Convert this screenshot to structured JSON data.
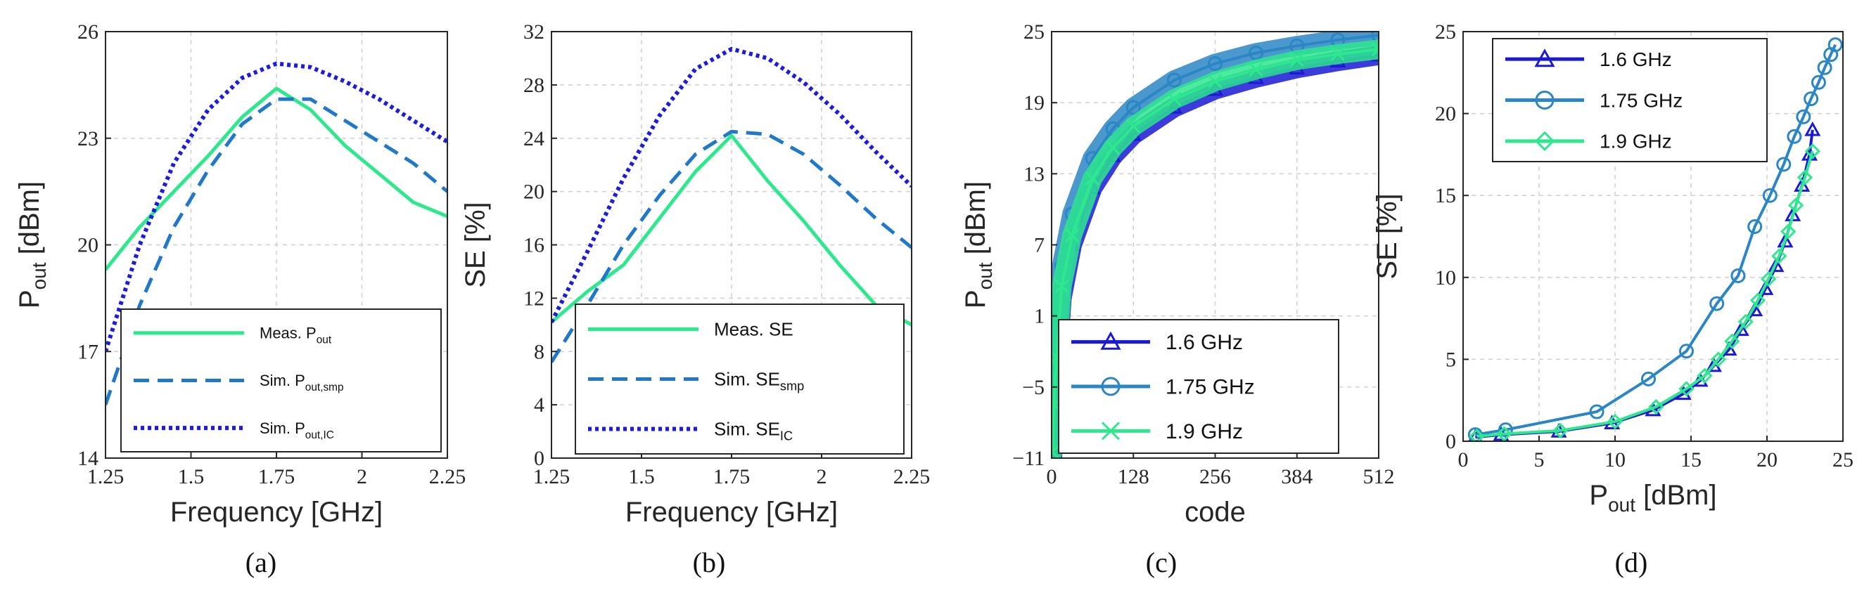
{
  "colors": {
    "green": "#2ee88e",
    "blue_dash": "#1f78c8",
    "blue_dot": "#1c1cdc",
    "blue_16": "#1a1ad6",
    "teal_175": "#2a86c4",
    "green_19": "#2ee88e"
  },
  "chart_data": [
    {
      "type": "line",
      "panel": "(a)",
      "xlabel": "Frequency [GHz]",
      "ylabel_main": "P",
      "ylabel_sub": "out",
      "ylabel_tail": " [dBm]",
      "xlim": [
        1.25,
        2.25
      ],
      "ylim": [
        14,
        26
      ],
      "xticks": [
        1.25,
        1.5,
        1.75,
        2,
        2.25
      ],
      "xtick_labels": [
        "1.25",
        "1.5",
        "1.75",
        "2",
        "2.25"
      ],
      "yticks": [
        14,
        17,
        20,
        23,
        26
      ],
      "ytick_labels": [
        "14",
        "17",
        "20",
        "23",
        "26"
      ],
      "grid": true,
      "legend_position": "bottom-right",
      "series": [
        {
          "name_main": "Meas. P",
          "name_sub": "out",
          "style": "solid",
          "color_key": "green",
          "x": [
            1.25,
            1.35,
            1.45,
            1.55,
            1.65,
            1.75,
            1.85,
            1.95,
            2.05,
            2.15,
            2.25
          ],
          "y": [
            19.3,
            20.5,
            21.5,
            22.5,
            23.6,
            24.4,
            23.8,
            22.8,
            22.0,
            21.2,
            20.8
          ]
        },
        {
          "name_main": "Sim. P",
          "name_sub": "out,smp",
          "style": "dashed",
          "color_key": "blue_dash",
          "x": [
            1.25,
            1.35,
            1.45,
            1.55,
            1.65,
            1.75,
            1.85,
            1.95,
            2.05,
            2.15,
            2.25
          ],
          "y": [
            15.5,
            18.3,
            20.5,
            22.1,
            23.4,
            24.1,
            24.1,
            23.5,
            22.9,
            22.3,
            21.5
          ]
        },
        {
          "name_main": "Sim. P",
          "name_sub": "out,IC",
          "style": "dotted",
          "color_key": "blue_dot",
          "x": [
            1.25,
            1.35,
            1.45,
            1.55,
            1.65,
            1.75,
            1.85,
            1.95,
            2.05,
            2.15,
            2.25
          ],
          "y": [
            17.0,
            20.0,
            22.3,
            23.8,
            24.7,
            25.1,
            25.0,
            24.6,
            24.1,
            23.5,
            22.9
          ]
        }
      ]
    },
    {
      "type": "line",
      "panel": "(b)",
      "xlabel": "Frequency [GHz]",
      "ylabel_main": "SE [%]",
      "ylabel_sub": "",
      "ylabel_tail": "",
      "xlim": [
        1.25,
        2.25
      ],
      "ylim": [
        0,
        32
      ],
      "xticks": [
        1.25,
        1.5,
        1.75,
        2,
        2.25
      ],
      "xtick_labels": [
        "1.25",
        "1.5",
        "1.75",
        "2",
        "2.25"
      ],
      "yticks": [
        0,
        4,
        8,
        12,
        16,
        20,
        24,
        28,
        32
      ],
      "ytick_labels": [
        "0",
        "4",
        "8",
        "12",
        "16",
        "20",
        "24",
        "28",
        "32"
      ],
      "grid": true,
      "legend_position": "bottom-right",
      "series": [
        {
          "name_main": "Meas. SE",
          "name_sub": "",
          "style": "solid",
          "color_key": "green",
          "x": [
            1.25,
            1.35,
            1.45,
            1.55,
            1.65,
            1.75,
            1.85,
            1.95,
            2.05,
            2.15,
            2.25
          ],
          "y": [
            10.2,
            12.5,
            14.5,
            18.0,
            21.5,
            24.2,
            20.8,
            17.8,
            14.5,
            11.5,
            10.0
          ]
        },
        {
          "name_main": "Sim. SE",
          "name_sub": "smp",
          "style": "dashed",
          "color_key": "blue_dash",
          "x": [
            1.25,
            1.35,
            1.45,
            1.55,
            1.65,
            1.75,
            1.85,
            1.95,
            2.05,
            2.15,
            2.25
          ],
          "y": [
            7.2,
            11.5,
            16.0,
            19.7,
            22.8,
            24.5,
            24.3,
            22.8,
            20.5,
            18.0,
            15.8
          ]
        },
        {
          "name_main": "Sim. SE",
          "name_sub": "IC",
          "style": "dotted",
          "color_key": "blue_dot",
          "x": [
            1.25,
            1.35,
            1.45,
            1.55,
            1.65,
            1.75,
            1.85,
            1.95,
            2.05,
            2.15,
            2.25
          ],
          "y": [
            10.2,
            15.5,
            21.0,
            25.7,
            29.2,
            30.7,
            30.0,
            28.2,
            25.8,
            23.0,
            20.4
          ]
        }
      ]
    },
    {
      "type": "line",
      "panel": "(c)",
      "xlabel": "code",
      "ylabel_main": "P",
      "ylabel_sub": "out",
      "ylabel_tail": " [dBm]",
      "xlim": [
        0,
        512
      ],
      "ylim": [
        -11,
        25
      ],
      "xticks": [
        0,
        128,
        256,
        384,
        512
      ],
      "xtick_labels": [
        "0",
        "128",
        "256",
        "384",
        "512"
      ],
      "yticks": [
        -11,
        -5,
        1,
        7,
        13,
        19,
        25
      ],
      "ytick_labels": [
        "−11",
        "−5",
        "1",
        "7",
        "13",
        "19",
        "25"
      ],
      "grid": true,
      "legend_position": "bottom-left",
      "series": [
        {
          "name_main": "1.6 GHz",
          "marker": "triangle",
          "color_key": "blue_16",
          "x": [
            1,
            4,
            8,
            16,
            32,
            64,
            96,
            128,
            192,
            256,
            320,
            384,
            448,
            512
          ],
          "y": [
            -11,
            -7.5,
            -3.5,
            2.5,
            7.0,
            11.8,
            14.5,
            16.3,
            18.6,
            20.1,
            21.1,
            21.9,
            22.5,
            23.0
          ]
        },
        {
          "name_main": "1.75 GHz",
          "marker": "circle",
          "color_key": "teal_175",
          "x": [
            1,
            4,
            8,
            16,
            32,
            64,
            96,
            128,
            192,
            256,
            320,
            384,
            448,
            512
          ],
          "y": [
            -9.5,
            -4.5,
            0.5,
            5.2,
            9.6,
            14.3,
            16.8,
            18.6,
            20.9,
            22.3,
            23.2,
            23.8,
            24.3,
            24.7
          ]
        },
        {
          "name_main": "1.9 GHz",
          "marker": "x",
          "color_key": "green_19",
          "x": [
            1,
            4,
            8,
            16,
            32,
            64,
            96,
            128,
            192,
            256,
            320,
            384,
            448,
            512
          ],
          "y": [
            -10.5,
            -6.5,
            -2.5,
            3.5,
            7.8,
            12.6,
            15.2,
            17.0,
            19.3,
            20.8,
            21.8,
            22.6,
            23.1,
            23.5
          ]
        }
      ]
    },
    {
      "type": "line",
      "panel": "(d)",
      "xlabel_main": "P",
      "xlabel_sub": "out",
      "xlabel_tail": " [dBm]",
      "ylabel_main": "SE [%]",
      "ylabel_sub": "",
      "ylabel_tail": "",
      "xlim": [
        0,
        25
      ],
      "ylim": [
        0,
        25
      ],
      "xticks": [
        0,
        5,
        10,
        15,
        20,
        25
      ],
      "xtick_labels": [
        "0",
        "5",
        "10",
        "15",
        "20",
        "25"
      ],
      "yticks": [
        0,
        5,
        10,
        15,
        20,
        25
      ],
      "ytick_labels": [
        "0",
        "5",
        "10",
        "15",
        "20",
        "25"
      ],
      "grid": true,
      "legend_position": "top-left",
      "series": [
        {
          "name_main": "1.6 GHz",
          "marker": "triangle",
          "color_key": "blue_16",
          "x": [
            0.8,
            2.5,
            6.3,
            9.8,
            12.5,
            14.5,
            15.6,
            16.5,
            17.5,
            18.3,
            19.2,
            19.9,
            20.6,
            21.2,
            21.7,
            22.3,
            22.8,
            23.0
          ],
          "y": [
            0.25,
            0.4,
            0.6,
            1.1,
            1.9,
            2.9,
            3.7,
            4.6,
            5.6,
            6.8,
            8.0,
            9.3,
            10.7,
            12.2,
            13.8,
            15.6,
            17.5,
            19.0
          ]
        },
        {
          "name_main": "1.75 GHz",
          "marker": "circle",
          "color_key": "teal_175",
          "x": [
            0.8,
            2.8,
            8.8,
            12.2,
            14.7,
            16.7,
            18.1,
            19.2,
            20.2,
            21.1,
            21.8,
            22.4,
            22.9,
            23.4,
            23.8,
            24.2,
            24.5
          ],
          "y": [
            0.4,
            0.7,
            1.8,
            3.8,
            5.5,
            8.4,
            10.1,
            13.1,
            15.0,
            16.9,
            18.6,
            19.8,
            20.9,
            21.9,
            22.8,
            23.6,
            24.2
          ]
        },
        {
          "name_main": "1.9 GHz",
          "marker": "diamond",
          "color_key": "green_19",
          "x": [
            0.9,
            2.7,
            6.4,
            10.0,
            12.7,
            14.7,
            15.9,
            16.8,
            17.7,
            18.6,
            19.4,
            20.1,
            20.8,
            21.4,
            21.9,
            22.5,
            23.0
          ],
          "y": [
            0.3,
            0.45,
            0.65,
            1.2,
            2.1,
            3.2,
            4.0,
            5.0,
            6.1,
            7.3,
            8.6,
            9.9,
            11.3,
            12.8,
            14.4,
            16.1,
            17.7
          ]
        }
      ]
    }
  ]
}
